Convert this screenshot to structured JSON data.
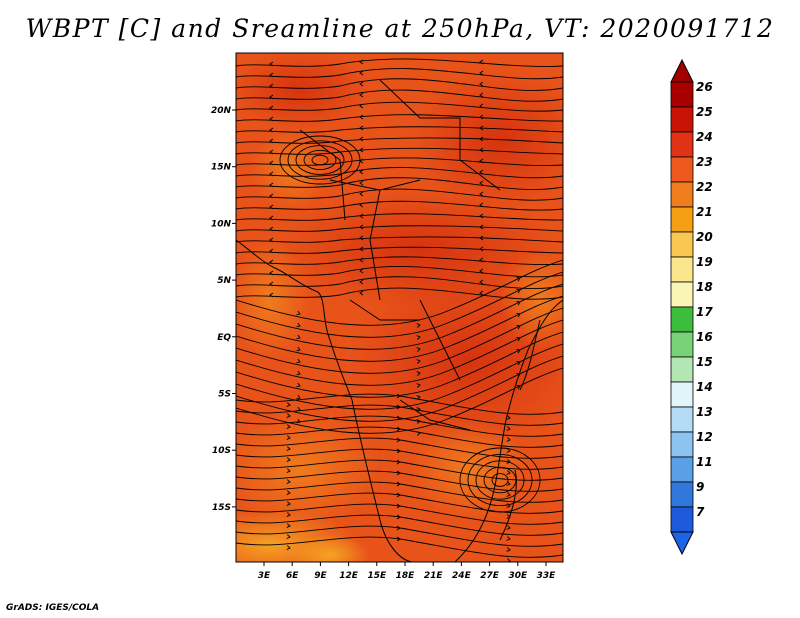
{
  "title": "WBPT [C] and Sreamline at 250hPa, VT: 2020091712",
  "credit": "GrADS: IGES/COLA",
  "map": {
    "lon_labels": [
      "3E",
      "6E",
      "9E",
      "12E",
      "15E",
      "18E",
      "21E",
      "24E",
      "27E",
      "30E",
      "33E"
    ],
    "lat_labels": [
      "20N",
      "15N",
      "10N",
      "5N",
      "EQ",
      "5S",
      "10S",
      "15S"
    ],
    "field_color": "#E8531A",
    "warm_color": "#D83A12",
    "cool_color": "#F07D1E",
    "warmest_lowlat": "#F5A623",
    "streamline_color": "#000000"
  },
  "colorbar": {
    "levels": [
      "26",
      "25",
      "24",
      "23",
      "22",
      "21",
      "20",
      "19",
      "18",
      "17",
      "16",
      "15",
      "14",
      "13",
      "12",
      "11",
      "9",
      "7"
    ],
    "colors": [
      "#A80000",
      "#C81405",
      "#E03214",
      "#EE5A1E",
      "#F07D1E",
      "#F5A014",
      "#FAC850",
      "#FAE68C",
      "#FAF5B4",
      "#3CBE3C",
      "#78D278",
      "#B4E6B4",
      "#E1F5FA",
      "#B4DCF5",
      "#8CC3F0",
      "#5AA0E6",
      "#3278DC",
      "#1E5ADC"
    ],
    "top_color": "#A00000",
    "bottom_color": "#1E64E6"
  }
}
